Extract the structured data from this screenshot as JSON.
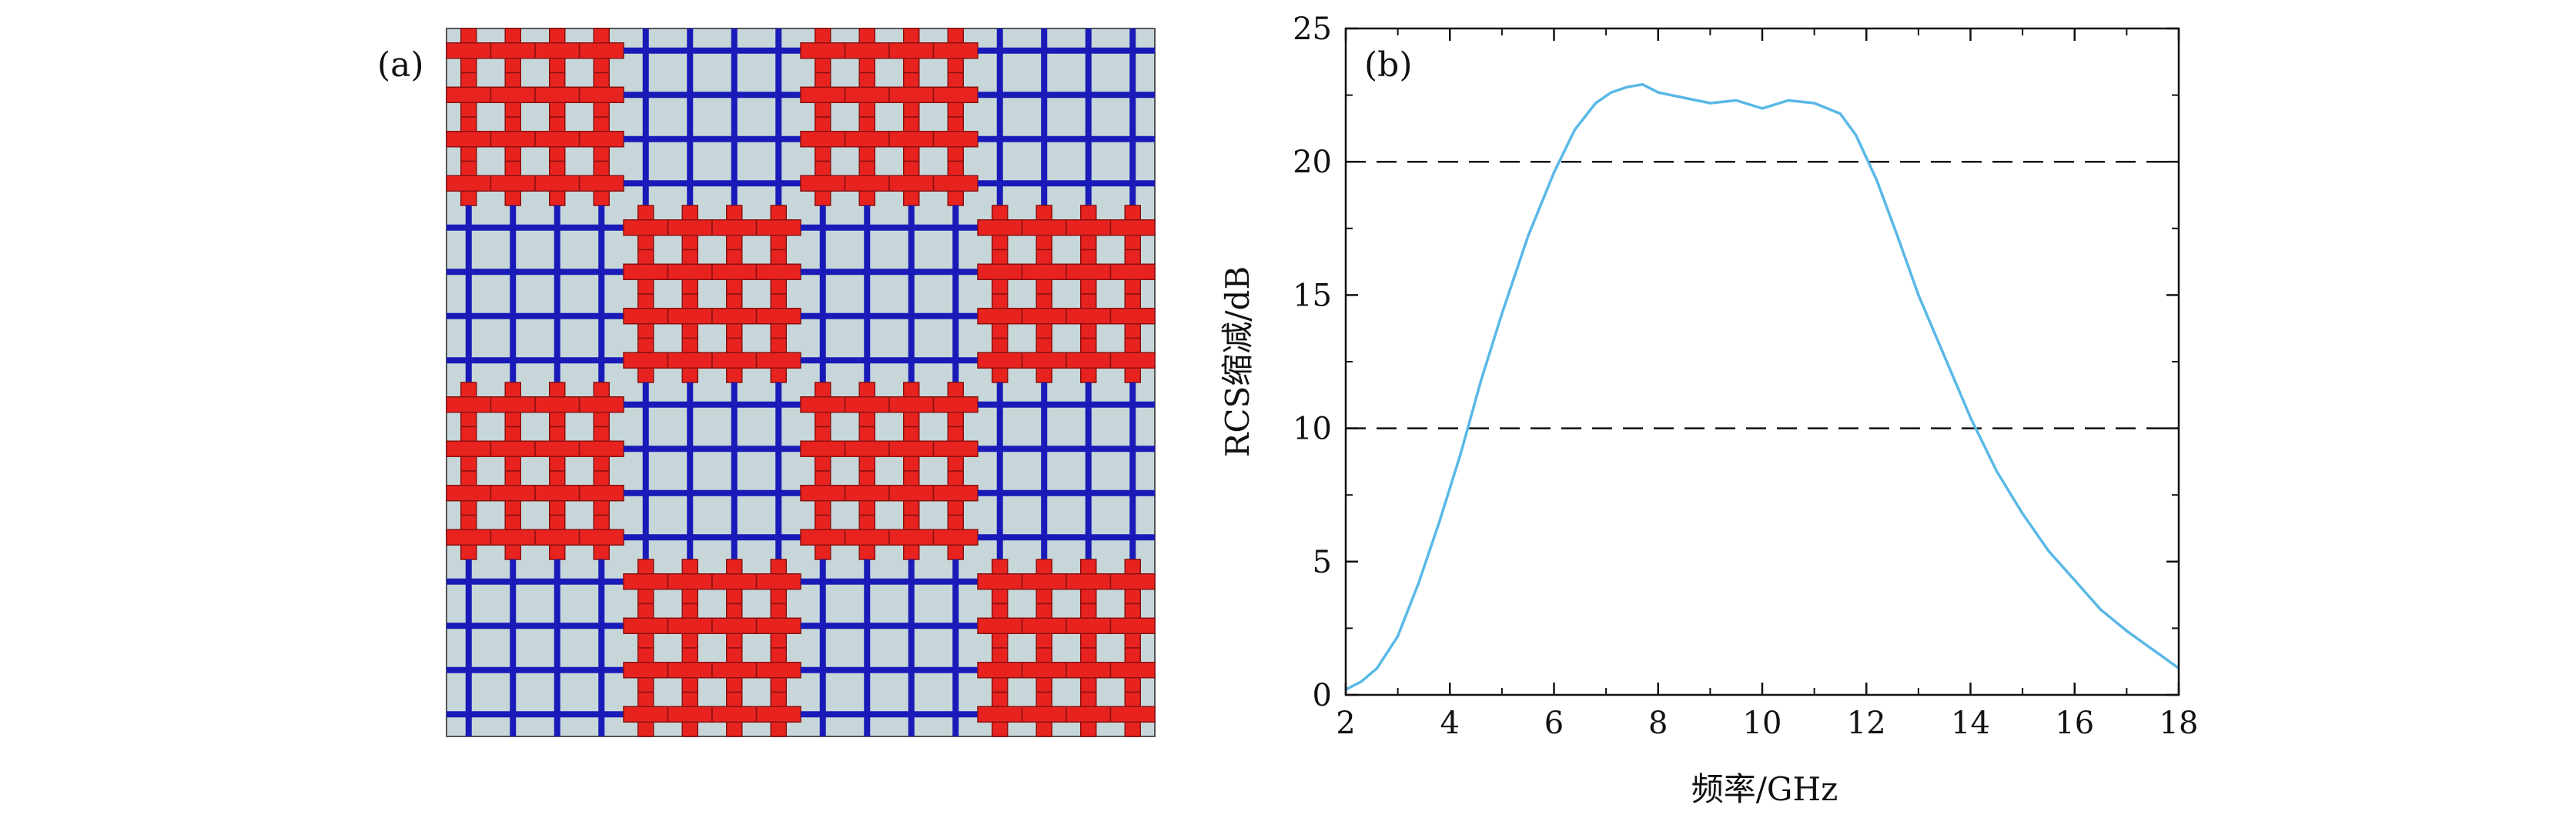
{
  "panels": {
    "a": {
      "label": "(a)"
    },
    "b": {
      "label": "(b)"
    }
  },
  "metasurface": {
    "layout": [
      [
        "red",
        "blue",
        "red",
        "blue"
      ],
      [
        "blue",
        "red",
        "blue",
        "red"
      ],
      [
        "red",
        "blue",
        "red",
        "blue"
      ],
      [
        "blue",
        "red",
        "blue",
        "red"
      ]
    ],
    "unit_cells_per_block": 4,
    "colors": {
      "substrate": "#c7d7d9",
      "blue_grid": "#1a1ab8",
      "red_cross": "#e8231f",
      "red_cross_edge": "#8a1010"
    }
  },
  "chart_data": {
    "type": "line",
    "xlabel": "频率/GHz",
    "ylabel": "RCS缩减/dB",
    "xlim": [
      2,
      18
    ],
    "ylim": [
      0,
      25
    ],
    "xticks": [
      2,
      4,
      6,
      8,
      10,
      12,
      14,
      16,
      18
    ],
    "yticks": [
      0,
      5,
      10,
      15,
      20,
      25
    ],
    "grid": false,
    "reference_lines": [
      10,
      20
    ],
    "series": [
      {
        "color": "#59b8e6",
        "x": [
          2,
          2.3,
          2.6,
          3.0,
          3.4,
          3.8,
          4.2,
          4.6,
          5.0,
          5.5,
          6.0,
          6.4,
          6.8,
          7.1,
          7.4,
          7.7,
          8.0,
          8.5,
          9.0,
          9.5,
          10.0,
          10.5,
          11.0,
          11.5,
          11.8,
          12.2,
          12.6,
          13.0,
          13.5,
          14.0,
          14.5,
          15.0,
          15.5,
          16.0,
          16.5,
          17.0,
          17.5,
          18.0
        ],
        "values": [
          0.2,
          0.5,
          1.0,
          2.2,
          4.2,
          6.5,
          9.0,
          11.8,
          14.3,
          17.2,
          19.6,
          21.2,
          22.2,
          22.6,
          22.8,
          22.9,
          22.6,
          22.4,
          22.2,
          22.3,
          22.0,
          22.3,
          22.2,
          21.8,
          21.0,
          19.3,
          17.2,
          15.0,
          12.7,
          10.4,
          8.4,
          6.8,
          5.4,
          4.3,
          3.2,
          2.4,
          1.7,
          1.0
        ]
      }
    ]
  }
}
